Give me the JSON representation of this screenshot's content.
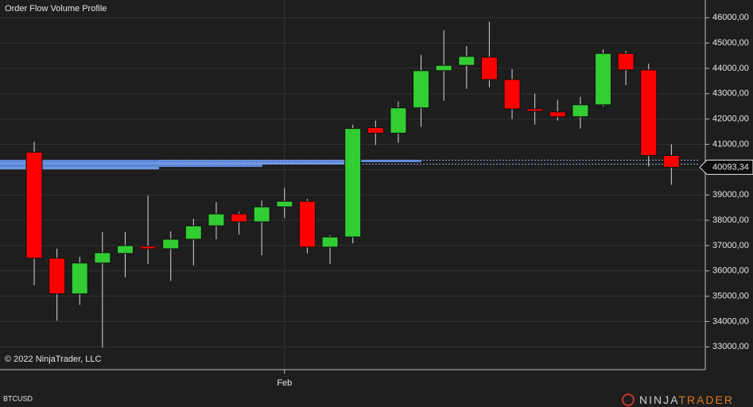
{
  "chart_data": {
    "type": "candlestick",
    "title": "Order Flow Volume Profile",
    "copyright": "© 2022 NinjaTrader, LLC",
    "instrument": "BTCUSD",
    "brand": {
      "first": "NINJA",
      "second": "TRADER"
    },
    "categories": [
      null,
      null,
      null,
      null,
      null,
      null,
      null,
      null,
      null,
      null,
      null,
      "Feb",
      null,
      null,
      null,
      null,
      null,
      null,
      null,
      null,
      null,
      null,
      null,
      null,
      null,
      null,
      null,
      null,
      null
    ],
    "open": [
      40690,
      36500,
      35094,
      36312,
      36690,
      36970,
      36875,
      37250,
      37780,
      38250,
      37940,
      38530,
      38750,
      36940,
      37340,
      41660,
      41440,
      42440,
      43910,
      44120,
      44440,
      43560,
      42400,
      42280,
      42090,
      42560,
      44590,
      43940,
      40560
    ],
    "high": [
      41094,
      36875,
      36560,
      37530,
      37530,
      38970,
      37560,
      38060,
      38720,
      38340,
      38780,
      39280,
      38840,
      37410,
      41780,
      41940,
      42690,
      44530,
      45500,
      44875,
      45840,
      43970,
      43000,
      42750,
      42875,
      44750,
      44690,
      44190,
      41000
    ],
    "low": [
      35437,
      34031,
      34656,
      32970,
      35750,
      36280,
      35600,
      36220,
      37250,
      37440,
      36620,
      38090,
      36690,
      36280,
      37090,
      40970,
      41060,
      41690,
      42720,
      43190,
      43250,
      42000,
      41780,
      41940,
      41620,
      42500,
      43340,
      40125,
      39400
    ],
    "close": [
      36500,
      35100,
      36312,
      36720,
      37000,
      36875,
      37250,
      37780,
      38250,
      37940,
      38530,
      38750,
      36940,
      37340,
      41625,
      41440,
      42440,
      43910,
      44120,
      44470,
      43560,
      42400,
      42310,
      42090,
      42560,
      44590,
      43940,
      40560,
      40093.34
    ],
    "last_price_label": "40093,34",
    "up_color": "#32cd32",
    "down_color": "#ff0000",
    "ylim": [
      32100,
      46700
    ],
    "yticks": [
      {
        "value": 33000,
        "label": "33000,00"
      },
      {
        "value": 34000,
        "label": "34000,00"
      },
      {
        "value": 35000,
        "label": "35000,00"
      },
      {
        "value": 36000,
        "label": "36000,00"
      },
      {
        "value": 37000,
        "label": "37000,00"
      },
      {
        "value": 38000,
        "label": "38000,00"
      },
      {
        "value": 39000,
        "label": "39000,00"
      },
      {
        "value": 40000,
        "label": "40000,00"
      },
      {
        "value": 41000,
        "label": "41000,00"
      },
      {
        "value": 42000,
        "label": "42000,00"
      },
      {
        "value": 43000,
        "label": "43000,00"
      },
      {
        "value": 44000,
        "label": "44000,00"
      },
      {
        "value": 45000,
        "label": "45000,00"
      },
      {
        "value": 46000,
        "label": "46000,00"
      }
    ],
    "grid": true
  }
}
